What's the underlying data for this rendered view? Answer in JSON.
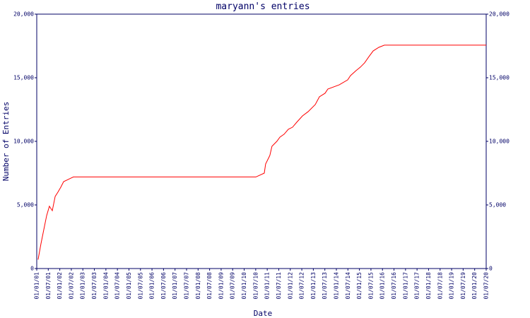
{
  "chart_data": {
    "type": "line",
    "title": "maryann's entries",
    "x_label": "Date",
    "y_label": "Number of Entries",
    "xticks": [
      "01/01/01",
      "01/07/01",
      "01/01/02",
      "01/07/02",
      "01/01/03",
      "01/07/03",
      "01/01/04",
      "01/07/04",
      "01/01/05",
      "01/07/05",
      "01/01/06",
      "01/07/06",
      "01/01/07",
      "01/07/07",
      "01/01/08",
      "01/07/08",
      "01/01/09",
      "01/07/09",
      "01/01/10",
      "01/07/10",
      "01/01/11",
      "01/07/11",
      "01/01/12",
      "01/07/12",
      "01/01/13",
      "01/07/13",
      "01/01/14",
      "01/07/14",
      "01/01/15",
      "01/07/15",
      "01/01/16",
      "01/07/16",
      "01/01/17",
      "01/07/17",
      "01/01/18",
      "01/07/18",
      "01/01/19",
      "01/07/19",
      "01/01/20",
      "01/07/20"
    ],
    "xlim": [
      "01/01/01",
      "01/07/20"
    ],
    "ylim": [
      0,
      20000
    ],
    "yticks": [
      0,
      {
        "value": 5000,
        "label": "5,000"
      },
      {
        "value": 10000,
        "label": "10,000"
      },
      {
        "value": 15000,
        "label": "15,000"
      },
      {
        "value": 20000,
        "label": "20,000"
      }
    ],
    "series": [
      {
        "name": "entries",
        "color": "#ff0000",
        "x": [
          "22/01/01",
          "07/03/01",
          "21/04/01",
          "06/06/01",
          "19/07/01",
          "04/09/01",
          "19/10/01",
          "01/12/01",
          "16/01/02",
          "01/03/02",
          "22/06/02",
          "04/08/02",
          "04/07/10",
          "15/11/10",
          "06/12/10",
          "12/02/11",
          "15/03/11",
          "01/06/11",
          "19/07/11",
          "25/09/11",
          "01/12/11",
          "06/02/12",
          "12/04/12",
          "12/07/12",
          "09/10/12",
          "01/02/13",
          "06/04/13",
          "04/07/13",
          "18/08/13",
          "15/02/14",
          "28/06/14",
          "12/08/14",
          "09/11/14",
          "15/01/15",
          "22/03/15",
          "01/06/15",
          "06/08/15",
          "04/11/15",
          "01/02/16",
          "01/07/20"
        ],
        "values": [
          700,
          1950,
          3050,
          4170,
          4900,
          4550,
          5670,
          6000,
          6390,
          6830,
          7100,
          7200,
          7200,
          7500,
          8220,
          8890,
          9610,
          10000,
          10330,
          10560,
          10950,
          11110,
          11500,
          12000,
          12330,
          12890,
          13500,
          13780,
          14110,
          14440,
          14830,
          15170,
          15560,
          15830,
          16170,
          16670,
          17110,
          17390,
          17560,
          17560
        ]
      }
    ]
  }
}
